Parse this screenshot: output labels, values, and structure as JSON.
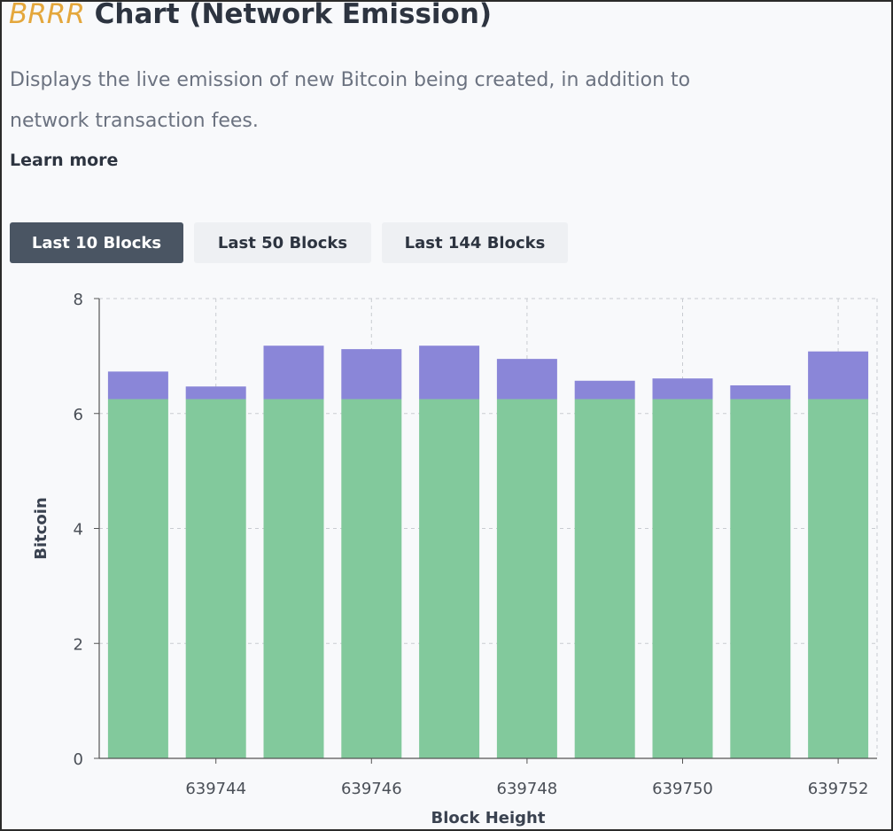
{
  "header": {
    "brand": "BRRR",
    "title_rest": " Chart (Network Emission)",
    "description": "Displays the live emission of new Bitcoin being created, in addition to network transaction fees.",
    "learn_more": "Learn more"
  },
  "tabs": [
    {
      "label": "Last 10 Blocks",
      "active": true
    },
    {
      "label": "Last 50 Blocks",
      "active": false
    },
    {
      "label": "Last 144 Blocks",
      "active": false
    }
  ],
  "colors": {
    "brand": "#e4a73c",
    "emission": "#82c99c",
    "fees": "#8a86d8",
    "active_tab": "#4a5563"
  },
  "chart_data": {
    "type": "bar",
    "stacked": true,
    "xlabel": "Block Height",
    "ylabel": "Bitcoin",
    "ylim": [
      0,
      8
    ],
    "yticks": [
      0,
      2,
      4,
      6,
      8
    ],
    "xticks": [
      "639744",
      "639746",
      "639748",
      "639750",
      "639752"
    ],
    "categories": [
      639743,
      639744,
      639745,
      639746,
      639747,
      639748,
      639749,
      639750,
      639751,
      639752
    ],
    "series": [
      {
        "values": [
          6.25,
          6.25,
          6.25,
          6.25,
          6.25,
          6.25,
          6.25,
          6.25,
          6.25,
          6.25
        ]
      },
      {
        "values": [
          0.48,
          0.22,
          0.93,
          0.87,
          0.93,
          0.7,
          0.32,
          0.36,
          0.24,
          0.83
        ]
      }
    ],
    "grid": true
  }
}
